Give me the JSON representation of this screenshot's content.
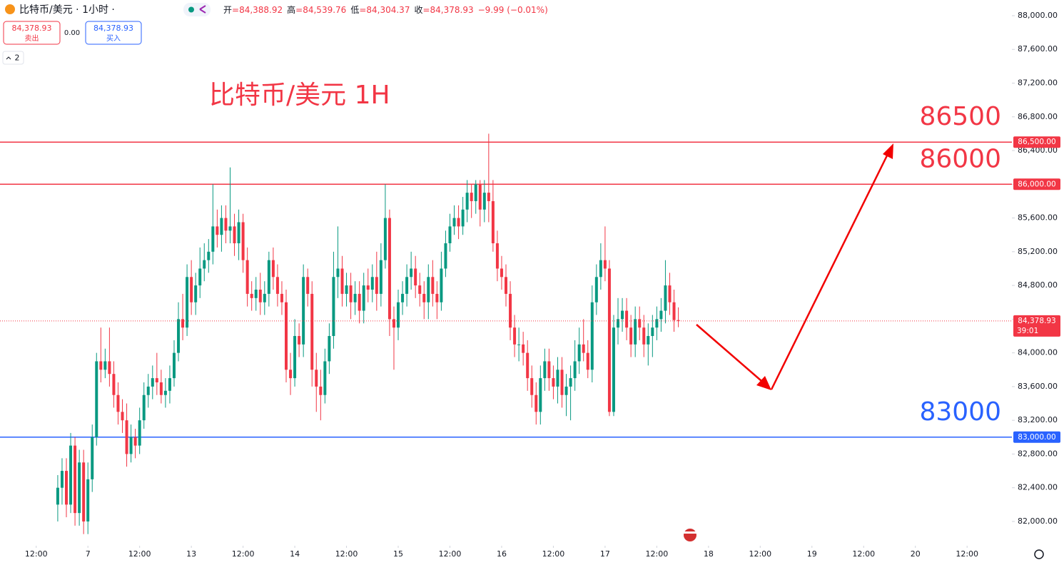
{
  "chart_data": {
    "type": "candlestick",
    "symbol": "比特币/美元 · 1小时 ·",
    "title": "比特币/美元 1H",
    "ohlc_header": [
      {
        "key": "开",
        "value": "=84,388.92"
      },
      {
        "key": "高",
        "value": "=84,539.76"
      },
      {
        "key": "低",
        "value": "=84,304.37"
      },
      {
        "key": "收",
        "value": "=84,378.93"
      }
    ],
    "change": "−9.99 (−0.01%)",
    "sell": {
      "price": "84,378.93",
      "label": "卖出"
    },
    "spread": "0.00",
    "buy": {
      "price": "84,378.93",
      "label": "买入"
    },
    "indicator_count": "2",
    "up_color": "#089981",
    "down_color": "#f23645",
    "open": [
      82200,
      82400,
      82600,
      82200,
      82900,
      82100,
      82700,
      82000,
      82500,
      83000,
      83900,
      83800,
      83900,
      83750,
      83500,
      83300,
      83200,
      82800,
      83000,
      82900,
      83200,
      83500,
      83600,
      83700,
      83650,
      83500,
      83550,
      83700,
      84000,
      84400,
      84300,
      84900,
      84600,
      84800,
      85000,
      85100,
      85200,
      85500,
      85400,
      85600,
      85450,
      85500,
      85300,
      85550,
      85100,
      84700,
      84650,
      84750,
      84600,
      84700,
      85100,
      84900,
      84700,
      84600,
      83800,
      83700,
      84200,
      84100,
      84900,
      84700,
      83800,
      83600,
      83500,
      83900,
      84200,
      84900,
      85000,
      84700,
      84800,
      84600,
      84700,
      84500,
      84800,
      84750,
      84900,
      84700,
      85100,
      85600,
      84400,
      84300,
      84600,
      84700,
      84900,
      85000,
      84800,
      84700,
      84600,
      84900,
      84700,
      84600,
      85000,
      85300,
      85500,
      85600,
      85500,
      85700,
      85900,
      85800,
      86000,
      85700,
      85900,
      85800,
      85300,
      85000,
      84900,
      84700,
      84300,
      84100,
      84100,
      84000,
      83700,
      83500,
      83300,
      83700,
      83900,
      83700,
      83600,
      83800,
      83500,
      83600,
      83700,
      83900,
      84100,
      84000,
      83800,
      84600,
      84900,
      85100,
      85000,
      83300,
      84300,
      84400,
      84500,
      84300,
      84100,
      84400,
      84300,
      84100,
      84200,
      84300,
      84400,
      84500,
      84800,
      84600,
      84388.92
    ],
    "high": [
      82550,
      82750,
      82750,
      83050,
      83000,
      82850,
      82850,
      82700,
      83150,
      84000,
      84300,
      84050,
      84300,
      83900,
      83650,
      83450,
      83400,
      83150,
      83100,
      83350,
      83650,
      83750,
      83850,
      84000,
      83800,
      83700,
      83850,
      84150,
      84600,
      84700,
      85050,
      85100,
      84950,
      85250,
      85300,
      85350,
      86000,
      85700,
      85750,
      85750,
      86200,
      85650,
      85700,
      85650,
      85250,
      84850,
      84900,
      84950,
      84850,
      85200,
      85250,
      85050,
      84850,
      84750,
      84000,
      84400,
      84350,
      85050,
      85000,
      84850,
      84000,
      83800,
      84050,
      84350,
      85200,
      85500,
      85150,
      84950,
      84950,
      84850,
      84850,
      84950,
      85000,
      85050,
      85200,
      85300,
      86000,
      85700,
      84550,
      84750,
      84850,
      85050,
      85200,
      85150,
      84950,
      84850,
      85050,
      85100,
      84850,
      85200,
      85450,
      85650,
      85750,
      85750,
      85850,
      86050,
      86000,
      86050,
      86050,
      86050,
      86600,
      86050,
      85450,
      85150,
      85050,
      84850,
      84450,
      84300,
      84250,
      84150,
      83850,
      83650,
      83850,
      84050,
      84050,
      83850,
      83950,
      83950,
      83750,
      83850,
      84150,
      84300,
      84400,
      84150,
      84800,
      85050,
      85300,
      85500,
      85100,
      84450,
      84650,
      84650,
      84650,
      84450,
      84550,
      84550,
      84450,
      84350,
      84450,
      84550,
      84650,
      85100,
      84950,
      84750,
      84539.76
    ],
    "low": [
      82000,
      82200,
      82050,
      82100,
      81950,
      81950,
      81850,
      81850,
      82350,
      82900,
      83650,
      83700,
      83600,
      83350,
      83150,
      83050,
      82650,
      82700,
      82750,
      82800,
      83100,
      83350,
      83450,
      83500,
      83400,
      83350,
      83400,
      83600,
      83900,
      84150,
      84200,
      84450,
      84450,
      84650,
      84850,
      84950,
      85050,
      85250,
      85200,
      85300,
      85300,
      85150,
      85100,
      84950,
      84550,
      84500,
      84500,
      84450,
      84450,
      84550,
      84750,
      84550,
      84450,
      83650,
      83500,
      83600,
      83950,
      83950,
      84550,
      83600,
      83300,
      83200,
      83400,
      83750,
      84050,
      84650,
      84550,
      84550,
      84400,
      84450,
      84350,
      84350,
      84600,
      84600,
      84500,
      84550,
      85000,
      84200,
      83800,
      84150,
      84450,
      84550,
      84750,
      84650,
      84550,
      84400,
      84400,
      84550,
      84400,
      84500,
      84900,
      85200,
      85400,
      85350,
      85400,
      85550,
      85600,
      85650,
      85500,
      85550,
      85550,
      85200,
      84850,
      84750,
      84550,
      84150,
      83950,
      83900,
      83850,
      83550,
      83350,
      83150,
      83150,
      83550,
      83550,
      83450,
      83400,
      83350,
      83250,
      83200,
      83550,
      83750,
      83900,
      83700,
      83650,
      84450,
      84750,
      84850,
      83250,
      83250,
      84100,
      84250,
      84150,
      83950,
      83950,
      84150,
      83950,
      83850,
      83950,
      84150,
      84250,
      84350,
      84450,
      84250,
      84304.37
    ],
    "close": [
      82400,
      82600,
      82200,
      82900,
      82100,
      82700,
      82000,
      82500,
      83000,
      83900,
      83800,
      83900,
      83750,
      83500,
      83300,
      83200,
      82800,
      83000,
      82900,
      83200,
      83500,
      83600,
      83700,
      83650,
      83500,
      83550,
      83700,
      84000,
      84400,
      84300,
      84900,
      84600,
      84800,
      85000,
      85100,
      85200,
      85500,
      85400,
      85600,
      85450,
      85500,
      85300,
      85550,
      85100,
      84700,
      84650,
      84750,
      84600,
      84700,
      85100,
      84900,
      84700,
      84600,
      83800,
      83700,
      84200,
      84100,
      84900,
      84700,
      83800,
      83600,
      83500,
      83900,
      84200,
      84900,
      85000,
      84700,
      84800,
      84600,
      84700,
      84500,
      84800,
      84750,
      84900,
      84700,
      85100,
      85600,
      84400,
      84300,
      84600,
      84700,
      84900,
      85000,
      84800,
      84700,
      84600,
      84900,
      84700,
      84600,
      85000,
      85300,
      85500,
      85600,
      85500,
      85700,
      85900,
      85800,
      86000,
      85700,
      85900,
      85800,
      85300,
      85000,
      84900,
      84700,
      84300,
      84100,
      84100,
      84000,
      83700,
      83500,
      83300,
      83700,
      83900,
      83700,
      83600,
      83800,
      83500,
      83600,
      83700,
      83900,
      84100,
      84000,
      83800,
      84600,
      84900,
      85100,
      85000,
      83300,
      84300,
      84400,
      84500,
      84300,
      84100,
      84400,
      84300,
      84100,
      84200,
      84300,
      84400,
      84500,
      84800,
      84600,
      84388.92,
      84378.93
    ],
    "last_price": {
      "label": "84,378.93",
      "countdown": "39:01",
      "color": "#f23645"
    },
    "levels": [
      {
        "value": 86500,
        "tag": "86,500.00",
        "color": "#f23645"
      },
      {
        "value": 86000,
        "tag": "86,000.00",
        "color": "#f23645"
      },
      {
        "value": 83000,
        "tag": "83,000.00",
        "color": "#2962ff"
      }
    ],
    "xlim": [
      -13.4,
      221.4
    ],
    "xticks": [
      {
        "value": -5,
        "label": "12:00"
      },
      7,
      {
        "value": 19,
        "label": "12:00"
      },
      {
        "value": 31,
        "label": "13"
      },
      {
        "value": 43,
        "label": "12:00"
      },
      {
        "value": 55,
        "label": "14"
      },
      {
        "value": 67,
        "label": "12:00"
      },
      {
        "value": 79,
        "label": "15"
      },
      {
        "value": 91,
        "label": "12:00"
      },
      {
        "value": 103,
        "label": "16"
      },
      {
        "value": 115,
        "label": "12:00"
      },
      {
        "value": 127,
        "label": "17"
      },
      {
        "value": 139,
        "label": "12:00"
      },
      {
        "value": 151,
        "label": "18"
      },
      {
        "value": 163,
        "label": "12:00"
      },
      {
        "value": 175,
        "label": "19"
      },
      {
        "value": 187,
        "label": "12:00"
      },
      {
        "value": 199,
        "label": "20"
      },
      {
        "value": 211,
        "label": "12:00"
      }
    ],
    "ylim": [
      81712,
      88186
    ],
    "yticks": [
      {
        "value": 82000,
        "label": "82,000.00"
      },
      {
        "value": 82400,
        "label": "82,400.00"
      },
      {
        "value": 82800,
        "label": "82,800.00"
      },
      {
        "value": 83200,
        "label": "83,200.00"
      },
      {
        "value": 83600,
        "label": "83,600.00"
      },
      {
        "value": 84000,
        "label": "84,000.00"
      },
      {
        "value": 84400,
        "label": "84,400.00"
      },
      {
        "value": 84800,
        "label": "84,800.00"
      },
      {
        "value": 85200,
        "label": "85,200.00"
      },
      {
        "value": 85600,
        "label": "85,600.00"
      },
      {
        "value": 86000,
        "label": "86,000.00"
      },
      {
        "value": 86400,
        "label": "86,400.00"
      },
      {
        "value": 86800,
        "label": "86,800.00"
      },
      {
        "value": 87200,
        "label": "87,200.00"
      },
      {
        "value": 87600,
        "label": "87,600.00"
      },
      {
        "value": 88000,
        "label": "88,000.00"
      }
    ]
  }
}
